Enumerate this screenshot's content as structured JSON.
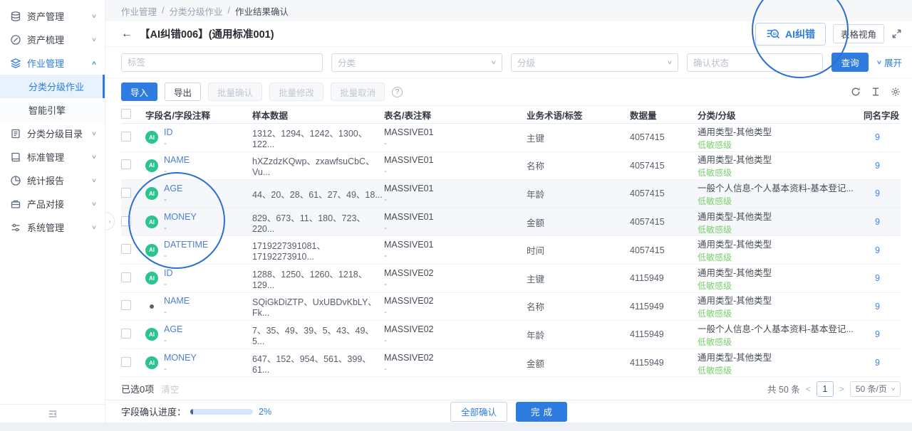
{
  "icons": {
    "ai_badge": "AI",
    "chevron_down": "∨",
    "chevron_up": "∧",
    "back_arrow": "←",
    "help": "?",
    "handle": "›",
    "breadcrumb_separator": "/"
  },
  "colors": {
    "primary": "#2e7ce0",
    "badge_green": "#2bc48e",
    "level_green": "#7ccf70"
  },
  "sidebar": {
    "items": [
      {
        "label": "资产管理",
        "chevron": "∨"
      },
      {
        "label": "资产梳理",
        "chevron": "∨"
      },
      {
        "label": "作业管理",
        "chevron": "∧"
      },
      {
        "label": "分类分级目录",
        "chevron": "∨"
      },
      {
        "label": "标准管理",
        "chevron": "∨"
      },
      {
        "label": "统计报告",
        "chevron": "∨"
      },
      {
        "label": "产品对接",
        "chevron": "∨"
      },
      {
        "label": "系统管理",
        "chevron": "∨"
      }
    ],
    "submenu": [
      {
        "label": "分类分级作业"
      },
      {
        "label": "智能引擎"
      }
    ]
  },
  "breadcrumb": {
    "items": [
      "作业管理",
      "分类分级作业",
      "作业结果确认"
    ]
  },
  "page_header": {
    "title": "【AI纠错006】(通用标准001)",
    "ai_button": "AI纠错",
    "view_button": "表格视角"
  },
  "filters": {
    "tag_placeholder": "标签",
    "category_placeholder": "分类",
    "level_placeholder": "分级",
    "status_placeholder": "确认状态",
    "search_button": "查询",
    "expand_link": "展开"
  },
  "toolbar": {
    "import": "导入",
    "export": "导出",
    "batch_confirm": "批量确认",
    "batch_modify": "批量修改",
    "batch_cancel": "批量取消"
  },
  "table": {
    "columns": [
      "字段名/字段注释",
      "样本数据",
      "表名/表注释",
      "业务术语/标签",
      "数据量",
      "分类/分级",
      "同名字段"
    ],
    "rows": [
      {
        "field": "ID",
        "field_note": "-",
        "sample": "1312、1294、1242、1300、122...",
        "table": "MASSIVE01",
        "table_note": "-",
        "term": "主键",
        "count": "4057415",
        "category": "通用类型-其他类型",
        "level": "低敏感级",
        "same": "9",
        "badge": "ai",
        "shaded": false
      },
      {
        "field": "NAME",
        "field_note": "-",
        "sample": "hXZzdzKQwp、zxawfsuCbC、Vu...",
        "table": "MASSIVE01",
        "table_note": "-",
        "term": "名称",
        "count": "4057415",
        "category": "通用类型-其他类型",
        "level": "低敏感级",
        "same": "9",
        "badge": "ai",
        "shaded": false
      },
      {
        "field": "AGE",
        "field_note": "-",
        "sample": "44、20、28、61、27、49、18...",
        "table": "MASSIVE01",
        "table_note": "-",
        "term": "年龄",
        "count": "4057415",
        "category": "一般个人信息-个人基本资料-基本登记...",
        "level": "低敏感级",
        "same": "9",
        "badge": "ai",
        "shaded": true
      },
      {
        "field": "MONEY",
        "field_note": "-",
        "sample": "829、673、11、180、723、220...",
        "table": "MASSIVE01",
        "table_note": "-",
        "term": "金额",
        "count": "4057415",
        "category": "通用类型-其他类型",
        "level": "低敏感级",
        "same": "9",
        "badge": "ai",
        "shaded": true
      },
      {
        "field": "DATETIME",
        "field_note": "-",
        "sample": "1719227391081、17192273910...",
        "table": "MASSIVE01",
        "table_note": "-",
        "term": "时间",
        "count": "4057415",
        "category": "通用类型-其他类型",
        "level": "低敏感级",
        "same": "9",
        "badge": "ai",
        "shaded": false
      },
      {
        "field": "ID",
        "field_note": "-",
        "sample": "1288、1250、1260、1218、129...",
        "table": "MASSIVE02",
        "table_note": "-",
        "term": "主键",
        "count": "4115949",
        "category": "通用类型-其他类型",
        "level": "低敏感级",
        "same": "9",
        "badge": "ai",
        "shaded": false
      },
      {
        "field": "NAME",
        "field_note": "-",
        "sample": "SQiGkDiZTP、UxUBDvKbLY、Fk...",
        "table": "MASSIVE02",
        "table_note": "-",
        "term": "名称",
        "count": "4115949",
        "category": "通用类型-其他类型",
        "level": "低敏感级",
        "same": "9",
        "badge": "dot",
        "shaded": false
      },
      {
        "field": "AGE",
        "field_note": "-",
        "sample": "7、35、49、39、5、43、49、5...",
        "table": "MASSIVE02",
        "table_note": "-",
        "term": "年龄",
        "count": "4115949",
        "category": "一般个人信息-个人基本资料-基本登记...",
        "level": "低敏感级",
        "same": "9",
        "badge": "ai",
        "shaded": false
      },
      {
        "field": "MONEY",
        "field_note": "-",
        "sample": "647、152、954、561、399、61...",
        "table": "MASSIVE02",
        "table_note": "-",
        "term": "金额",
        "count": "4115949",
        "category": "通用类型-其他类型",
        "level": "低敏感级",
        "same": "9",
        "badge": "ai",
        "shaded": false
      }
    ]
  },
  "selection_bar": {
    "selected": "已选0项",
    "clear": "清空"
  },
  "pagination": {
    "total": "共 50 条",
    "prev": "<",
    "page": "1",
    "next": ">",
    "page_size": "50 条/页"
  },
  "footer": {
    "progress_label": "字段确认进度：",
    "progress_value": "2%",
    "progress_percent": 2,
    "confirm_all": "全部确认",
    "done": "完成"
  }
}
